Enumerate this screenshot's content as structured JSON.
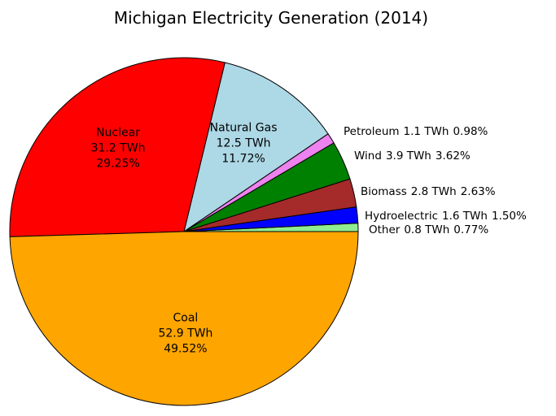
{
  "chart_data": {
    "type": "pie",
    "title": "Michigan Electricity Generation (2014)",
    "categories": [
      "Other",
      "Hydroelectric",
      "Biomass",
      "Wind",
      "Petroleum",
      "Natural Gas",
      "Nuclear",
      "Coal"
    ],
    "values": [
      0.8,
      1.6,
      2.8,
      3.9,
      1.1,
      12.5,
      31.2,
      52.9
    ],
    "value_labels": [
      "0.8 TWh",
      "1.6 TWh",
      "2.8 TWh",
      "3.9 TWh",
      "1.1 TWh",
      "12.5 TWh",
      "31.2 TWh",
      "52.9 TWh"
    ],
    "percentages": [
      0.77,
      1.5,
      2.63,
      3.62,
      0.98,
      11.72,
      29.25,
      49.52
    ],
    "percentage_labels": [
      "0.77%",
      "1.50%",
      "2.63%",
      "3.62%",
      "0.98%",
      "11.72%",
      "29.25%",
      "49.52%"
    ],
    "colors": [
      "#90ee90",
      "#0000ff",
      "#a52a2a",
      "#008000",
      "#ee82ee",
      "#add8e6",
      "#ff0000",
      "#ffa500"
    ]
  }
}
